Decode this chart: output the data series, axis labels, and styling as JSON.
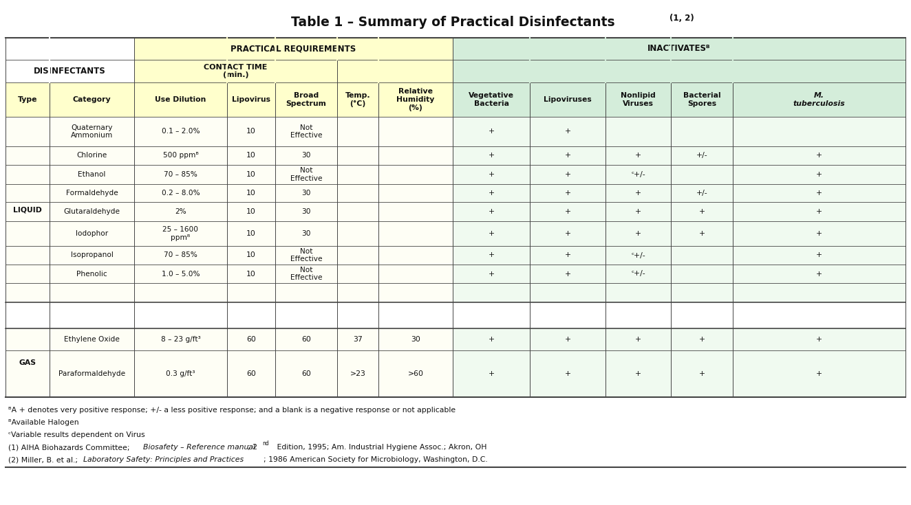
{
  "title_main": "Table 1 – Summary of Practical Disinfectants ",
  "title_super": "(1, 2)",
  "bg_color": "#ffffff",
  "header_yellow": "#ffffcc",
  "header_green": "#d4edda",
  "cell_yellow": "#fefef5",
  "cell_green": "#f0faf0",
  "border_color": "#444444",
  "rows": [
    {
      "category": "Quaternary\nAmmonium",
      "use_dilution": "0.1 – 2.0%",
      "lipovirus": "10",
      "broad_spectrum": "Not\nEffective",
      "temp": "",
      "rel_humidity": "",
      "veg_bacteria": "+",
      "lipoviruses": "+",
      "nonlipid_viruses": "",
      "bacterial_spores": "",
      "m_tuberculosis": ""
    },
    {
      "category": "Chlorine",
      "use_dilution": "500 ppmᴮ",
      "lipovirus": "10",
      "broad_spectrum": "30",
      "temp": "",
      "rel_humidity": "",
      "veg_bacteria": "+",
      "lipoviruses": "+",
      "nonlipid_viruses": "+",
      "bacterial_spores": "+/-",
      "m_tuberculosis": "+"
    },
    {
      "category": "Ethanol",
      "use_dilution": "70 – 85%",
      "lipovirus": "10",
      "broad_spectrum": "Not\nEffective",
      "temp": "",
      "rel_humidity": "",
      "veg_bacteria": "+",
      "lipoviruses": "+",
      "nonlipid_viruses": "ᶜ+/-",
      "bacterial_spores": "",
      "m_tuberculosis": "+"
    },
    {
      "category": "Formaldehyde",
      "use_dilution": "0.2 – 8.0%",
      "lipovirus": "10",
      "broad_spectrum": "30",
      "temp": "",
      "rel_humidity": "",
      "veg_bacteria": "+",
      "lipoviruses": "+",
      "nonlipid_viruses": "+",
      "bacterial_spores": "+/-",
      "m_tuberculosis": "+"
    },
    {
      "category": "Glutaraldehyde",
      "use_dilution": "2%",
      "lipovirus": "10",
      "broad_spectrum": "30",
      "temp": "",
      "rel_humidity": "",
      "veg_bacteria": "+",
      "lipoviruses": "+",
      "nonlipid_viruses": "+",
      "bacterial_spores": "+",
      "m_tuberculosis": "+"
    },
    {
      "category": "Iodophor",
      "use_dilution": "25 – 1600\nppmᴮ",
      "lipovirus": "10",
      "broad_spectrum": "30",
      "temp": "",
      "rel_humidity": "",
      "veg_bacteria": "+",
      "lipoviruses": "+",
      "nonlipid_viruses": "+",
      "bacterial_spores": "+",
      "m_tuberculosis": "+"
    },
    {
      "category": "Isopropanol",
      "use_dilution": "70 – 85%",
      "lipovirus": "10",
      "broad_spectrum": "Not\nEffective",
      "temp": "",
      "rel_humidity": "",
      "veg_bacteria": "+",
      "lipoviruses": "+",
      "nonlipid_viruses": "ᶜ+/-",
      "bacterial_spores": "",
      "m_tuberculosis": "+"
    },
    {
      "category": "Phenolic",
      "use_dilution": "1.0 – 5.0%",
      "lipovirus": "10",
      "broad_spectrum": "Not\nEffective",
      "temp": "",
      "rel_humidity": "",
      "veg_bacteria": "+",
      "lipoviruses": "+",
      "nonlipid_viruses": "ᶜ+/-",
      "bacterial_spores": "",
      "m_tuberculosis": "+"
    },
    {
      "category": "Ethylene Oxide",
      "use_dilution": "8 – 23 g/ft³",
      "lipovirus": "60",
      "broad_spectrum": "60",
      "temp": "37",
      "rel_humidity": "30",
      "veg_bacteria": "+",
      "lipoviruses": "+",
      "nonlipid_viruses": "+",
      "bacterial_spores": "+",
      "m_tuberculosis": "+"
    },
    {
      "category": "Paraformaldehyde",
      "use_dilution": "0.3 g/ft³",
      "lipovirus": "60",
      "broad_spectrum": "60",
      "temp": ">23",
      "rel_humidity": ">60",
      "veg_bacteria": "+",
      "lipoviruses": "+",
      "nonlipid_viruses": "+",
      "bacterial_spores": "+",
      "m_tuberculosis": "+"
    }
  ]
}
